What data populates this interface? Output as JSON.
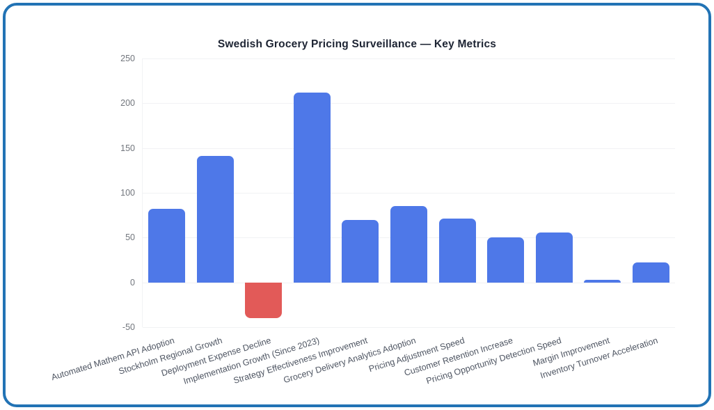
{
  "window": {
    "border_color": "#2273b5",
    "background_color": "#ffffff"
  },
  "chart_data": {
    "type": "bar",
    "title": "Swedish Grocery Pricing Surveillance — Key Metrics",
    "categories": [
      "Automated Mathem API Adoption",
      "Stockholm Regional Growth",
      "Deployment Expense Decline",
      "Implementation Growth (Since 2023)",
      "Strategy Effectiveness Improvement",
      "Grocery Delivery Analytics Adoption",
      "Pricing Adjustment Speed",
      "Customer Retention Increase",
      "Pricing Opportunity Detection Speed",
      "Margin Improvement",
      "Inventory Turnover Acceleration"
    ],
    "values": [
      82,
      141,
      -40,
      212,
      70,
      85,
      71,
      50,
      56,
      3,
      22
    ],
    "xlabel": "",
    "ylabel": "",
    "ylim": [
      -50,
      250
    ],
    "yticks": [
      250,
      200,
      150,
      100,
      50,
      0,
      -50
    ],
    "grid": true,
    "legend": false,
    "colors": {
      "positive_bar": "#4e78e8",
      "negative_bar": "#e25a58",
      "grid_line": "#f1f2f4",
      "y_tick_label": "#71757c",
      "category_label": "#4e5562",
      "title": "#1d2433"
    }
  }
}
